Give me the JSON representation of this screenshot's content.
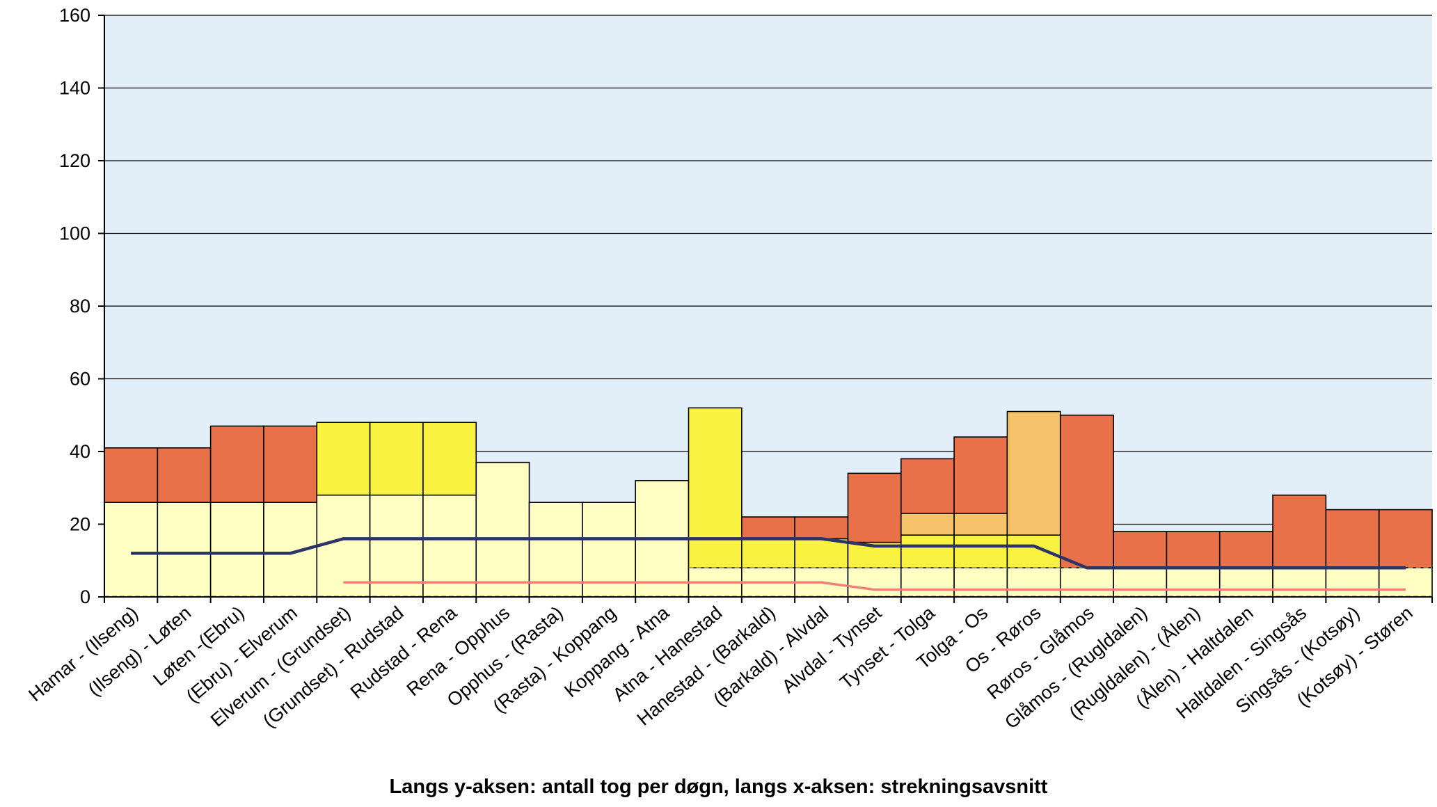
{
  "chart_data": {
    "type": "bar",
    "stacked": true,
    "title": "",
    "xlabel": "Langs y-aksen: antall tog per døgn, langs x-aksen: strekningsavsnitt",
    "ylabel": "",
    "ylim": [
      0,
      160
    ],
    "yticks": [
      0,
      20,
      40,
      60,
      80,
      100,
      120,
      140,
      160
    ],
    "grid": true,
    "legend": "none",
    "colors": {
      "plot_background": "#e3eff8",
      "base": "#ffffc4",
      "yellow": "#faf240",
      "light_orange": "#f5c269",
      "red_orange": "#e8714a",
      "blue_line": "#2c3468",
      "pink_line": "#f08078",
      "gridline": "#000000",
      "dashed_line": "#8f8f60"
    },
    "categories": [
      "Hamar - (Ilseng)",
      "(Ilseng) - Løten",
      "Løten -(Ebru)",
      "(Ebru) - Elverum",
      "Elverum - (Grundset)",
      "(Grundset) - Rudstad",
      "Rudstad - Rena",
      "Rena - Opphus",
      "Opphus - (Rasta)",
      "(Rasta) - Koppang",
      "Koppang - Atna",
      "Atna - Hanestad",
      "Hanestad - (Barkald)",
      "(Barkald) - Alvdal",
      "Alvdal - Tynset",
      "Tynset - Tolga",
      "Tolga - Os",
      "Os - Røros",
      "Røros - Glåmos",
      "Glåmos - (Rugldalen)",
      "(Rugldalen) - (Ålen)",
      "(Ålen) - Haltdalen",
      "Haltdalen - Singsås",
      "Singsås - (Kotsøy)",
      "(Kotsøy) - Støren"
    ],
    "segments": [
      [
        {
          "color": "base",
          "value": 26
        },
        {
          "color": "red_orange",
          "value": 15
        }
      ],
      [
        {
          "color": "base",
          "value": 26
        },
        {
          "color": "red_orange",
          "value": 15
        }
      ],
      [
        {
          "color": "base",
          "value": 26
        },
        {
          "color": "red_orange",
          "value": 21
        }
      ],
      [
        {
          "color": "base",
          "value": 26
        },
        {
          "color": "red_orange",
          "value": 21
        }
      ],
      [
        {
          "color": "base",
          "value": 28
        },
        {
          "color": "yellow",
          "value": 20
        }
      ],
      [
        {
          "color": "base",
          "value": 28
        },
        {
          "color": "yellow",
          "value": 20
        }
      ],
      [
        {
          "color": "base",
          "value": 28
        },
        {
          "color": "yellow",
          "value": 20
        }
      ],
      [
        {
          "color": "base",
          "value": 37
        }
      ],
      [
        {
          "color": "base",
          "value": 26
        }
      ],
      [
        {
          "color": "base",
          "value": 26
        }
      ],
      [
        {
          "color": "base",
          "value": 32
        }
      ],
      [
        {
          "color": "base",
          "value": 8
        },
        {
          "color": "yellow",
          "value": 44
        }
      ],
      [
        {
          "color": "base",
          "value": 8
        },
        {
          "color": "yellow",
          "value": 8
        },
        {
          "color": "red_orange",
          "value": 6
        }
      ],
      [
        {
          "color": "base",
          "value": 8
        },
        {
          "color": "yellow",
          "value": 8
        },
        {
          "color": "red_orange",
          "value": 6
        }
      ],
      [
        {
          "color": "base",
          "value": 8
        },
        {
          "color": "yellow",
          "value": 7
        },
        {
          "color": "red_orange",
          "value": 19
        }
      ],
      [
        {
          "color": "base",
          "value": 8
        },
        {
          "color": "yellow",
          "value": 9
        },
        {
          "color": "light_orange",
          "value": 6
        },
        {
          "color": "red_orange",
          "value": 15
        }
      ],
      [
        {
          "color": "base",
          "value": 8
        },
        {
          "color": "yellow",
          "value": 9
        },
        {
          "color": "light_orange",
          "value": 6
        },
        {
          "color": "red_orange",
          "value": 21
        }
      ],
      [
        {
          "color": "base",
          "value": 8
        },
        {
          "color": "yellow",
          "value": 9
        },
        {
          "color": "light_orange",
          "value": 34
        }
      ],
      [
        {
          "color": "base",
          "value": 8
        },
        {
          "color": "red_orange",
          "value": 42
        }
      ],
      [
        {
          "color": "base",
          "value": 8
        },
        {
          "color": "red_orange",
          "value": 10
        }
      ],
      [
        {
          "color": "base",
          "value": 8
        },
        {
          "color": "red_orange",
          "value": 10
        }
      ],
      [
        {
          "color": "base",
          "value": 8
        },
        {
          "color": "red_orange",
          "value": 10
        }
      ],
      [
        {
          "color": "base",
          "value": 8
        },
        {
          "color": "red_orange",
          "value": 20
        }
      ],
      [
        {
          "color": "base",
          "value": 8
        },
        {
          "color": "red_orange",
          "value": 16
        }
      ],
      [
        {
          "color": "base",
          "value": 8
        },
        {
          "color": "red_orange",
          "value": 16
        }
      ]
    ],
    "dashed_level": 8,
    "lines": [
      {
        "color": "blue_line",
        "values": [
          12,
          12,
          12,
          12,
          16,
          16,
          16,
          16,
          16,
          16,
          16,
          16,
          16,
          16,
          14,
          14,
          14,
          14,
          8,
          8,
          8,
          8,
          8,
          8,
          8
        ]
      },
      {
        "color": "pink_line",
        "values": [
          null,
          null,
          null,
          null,
          4,
          4,
          4,
          4,
          4,
          4,
          4,
          4,
          4,
          4,
          2,
          2,
          2,
          2,
          2,
          2,
          2,
          2,
          2,
          2,
          2
        ]
      }
    ]
  }
}
